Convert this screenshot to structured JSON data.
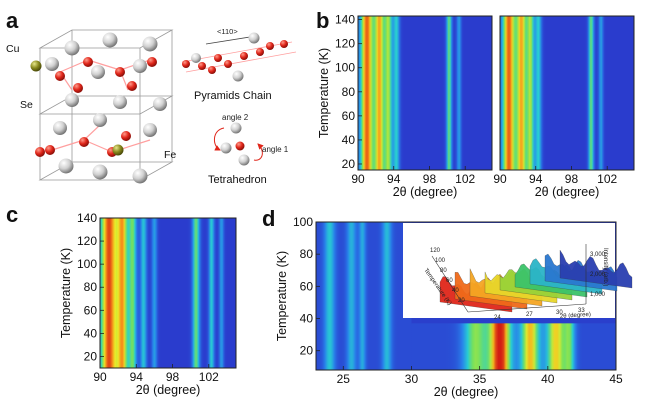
{
  "panels": {
    "a": {
      "label": "a",
      "atoms": {
        "cu": "Cu",
        "se": "Se",
        "fe": "Fe"
      },
      "direction": "<110>",
      "pyramids_chain": "Pyramids Chain",
      "angle2": "angle 2",
      "angle1": "angle 1",
      "tetrahedron": "Tetrahedron",
      "colors": {
        "cu": "#8a8a1e",
        "se": "#d8d8d8",
        "fe": "#e0261a"
      }
    },
    "b": {
      "label": "b"
    },
    "c": {
      "label": "c"
    },
    "d": {
      "label": "d"
    },
    "inset": {
      "xlabel": "2θ (degree)",
      "ylabel": "Temperature (K)",
      "zlabel": "Intensity (arb.)",
      "ticks": [
        "120",
        "100",
        "80",
        "60",
        "40",
        "20",
        "24",
        "27",
        "30",
        "33",
        "1,000",
        "2,000",
        "3,000"
      ]
    }
  },
  "chart_data": [
    {
      "id": "b-left",
      "type": "heatmap",
      "xlabel": "2θ (degree)",
      "ylabel": "Temperature (K)",
      "xlim": [
        90,
        105
      ],
      "ylim": [
        15,
        143
      ],
      "xticks": [
        "90",
        "94",
        "98",
        "102"
      ],
      "yticks": [
        "20",
        "40",
        "60",
        "80",
        "100",
        "120",
        "140"
      ],
      "background": "#3d55d4",
      "peaks": [
        {
          "center": 91.0,
          "width": 0.75,
          "intensity": 0.92
        },
        {
          "center": 92.4,
          "width": 0.55,
          "intensity": 0.8
        },
        {
          "center": 93.4,
          "width": 0.45,
          "intensity": 0.62
        },
        {
          "center": 94.3,
          "width": 0.35,
          "intensity": 0.42
        },
        {
          "center": 100.2,
          "width": 0.3,
          "intensity": 0.55
        },
        {
          "center": 101.3,
          "width": 0.25,
          "intensity": 0.3
        }
      ]
    },
    {
      "id": "b-right",
      "type": "heatmap",
      "xlabel": "2θ (degree)",
      "ylabel": "",
      "xlim": [
        90,
        105
      ],
      "ylim": [
        15,
        143
      ],
      "xticks": [
        "90",
        "94",
        "98",
        "102"
      ],
      "yticks": [],
      "background": "#3d55d4",
      "peaks": [
        {
          "center": 91.0,
          "width": 0.75,
          "intensity": 0.92
        },
        {
          "center": 92.4,
          "width": 0.55,
          "intensity": 0.8
        },
        {
          "center": 93.4,
          "width": 0.45,
          "intensity": 0.62
        },
        {
          "center": 94.3,
          "width": 0.35,
          "intensity": 0.42
        },
        {
          "center": 100.2,
          "width": 0.3,
          "intensity": 0.55
        },
        {
          "center": 101.3,
          "width": 0.25,
          "intensity": 0.3
        }
      ]
    },
    {
      "id": "c",
      "type": "heatmap",
      "xlabel": "2θ (degree)",
      "ylabel": "Temperature (K)",
      "xlim": [
        90,
        105
      ],
      "ylim": [
        10,
        140
      ],
      "xticks": [
        "90",
        "94",
        "98",
        "102"
      ],
      "yticks": [
        "20",
        "40",
        "60",
        "80",
        "100",
        "120",
        "140"
      ],
      "background": "#3d55d4",
      "peaks": [
        {
          "center": 91.0,
          "width": 1.0,
          "intensity": 0.95
        },
        {
          "center": 92.5,
          "width": 0.6,
          "intensity": 0.75
        },
        {
          "center": 93.6,
          "width": 0.45,
          "intensity": 0.55
        },
        {
          "center": 94.8,
          "width": 0.35,
          "intensity": 0.4
        },
        {
          "center": 96.0,
          "width": 0.3,
          "intensity": 0.3
        },
        {
          "center": 100.6,
          "width": 0.4,
          "intensity": 0.55
        },
        {
          "center": 102.3,
          "width": 0.3,
          "intensity": 0.42
        },
        {
          "center": 103.4,
          "width": 0.25,
          "intensity": 0.3
        }
      ]
    },
    {
      "id": "d",
      "type": "heatmap",
      "xlabel": "2θ (degree)",
      "ylabel": "Temperature (K)",
      "xlim": [
        23,
        45
      ],
      "ylim": [
        8,
        100
      ],
      "xticks": [
        "25",
        "30",
        "35",
        "40",
        "45"
      ],
      "yticks": [
        "20",
        "40",
        "60",
        "80",
        "100"
      ],
      "background": "#2a3fcc",
      "regions": [
        {
          "name": "low-angle",
          "xrange": [
            23,
            30
          ],
          "trange": [
            8,
            100
          ],
          "peaks": [
            {
              "center": 24.0,
              "width": 0.4,
              "intensity": 0.35
            },
            {
              "center": 25.6,
              "width": 0.35,
              "intensity": 0.3
            },
            {
              "center": 26.4,
              "width": 0.25,
              "intensity": 0.28
            },
            {
              "center": 28.2,
              "width": 0.35,
              "intensity": 0.32
            }
          ]
        },
        {
          "name": "high-angle",
          "xrange": [
            30,
            45
          ],
          "trange": [
            8,
            37
          ],
          "peaks": [
            {
              "center": 34.7,
              "width": 0.9,
              "intensity": 0.55
            },
            {
              "center": 36.5,
              "width": 0.8,
              "intensity": 1.0
            },
            {
              "center": 38.7,
              "width": 0.7,
              "intensity": 0.75
            },
            {
              "center": 40.6,
              "width": 0.7,
              "intensity": 0.72
            },
            {
              "center": 41.6,
              "width": 0.4,
              "intensity": 0.45
            }
          ]
        }
      ]
    }
  ]
}
